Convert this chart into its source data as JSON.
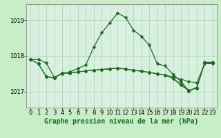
{
  "title": "Graphe pression niveau de la mer (hPa)",
  "background_color": "#c8eec8",
  "plot_bg_color": "#d8f0e0",
  "grid_color": "#a0c8a0",
  "line_color": "#1a6b1a",
  "ylim": [
    1016.55,
    1019.45
  ],
  "yticks": [
    1017,
    1018,
    1019
  ],
  "xlim": [
    -0.5,
    23.5
  ],
  "xticks": [
    0,
    1,
    2,
    3,
    4,
    5,
    6,
    7,
    8,
    9,
    10,
    11,
    12,
    13,
    14,
    15,
    16,
    17,
    18,
    19,
    20,
    21,
    22,
    23
  ],
  "series_main": [
    1017.9,
    1017.9,
    1017.8,
    1017.4,
    1017.5,
    1017.55,
    1017.65,
    1017.75,
    1018.25,
    1018.65,
    1018.92,
    1019.2,
    1019.08,
    1018.72,
    1018.55,
    1018.3,
    1017.78,
    1017.72,
    1017.48,
    1017.28,
    1017.02,
    1017.12,
    1017.82,
    1017.82
  ],
  "series_flat1": [
    1017.9,
    1017.78,
    1017.42,
    1017.38,
    1017.52,
    1017.52,
    1017.55,
    1017.58,
    1017.6,
    1017.62,
    1017.64,
    1017.66,
    1017.63,
    1017.6,
    1017.57,
    1017.54,
    1017.5,
    1017.46,
    1017.42,
    1017.35,
    1017.28,
    1017.25,
    1017.78,
    1017.78
  ],
  "series_flat2": [
    1017.9,
    1017.78,
    1017.42,
    1017.38,
    1017.52,
    1017.52,
    1017.55,
    1017.58,
    1017.6,
    1017.62,
    1017.64,
    1017.66,
    1017.63,
    1017.6,
    1017.57,
    1017.54,
    1017.5,
    1017.46,
    1017.38,
    1017.2,
    1017.04,
    1017.1,
    1017.8,
    1017.8
  ],
  "series_flat3": [
    1017.9,
    1017.78,
    1017.42,
    1017.38,
    1017.52,
    1017.52,
    1017.55,
    1017.58,
    1017.6,
    1017.62,
    1017.64,
    1017.66,
    1017.63,
    1017.6,
    1017.57,
    1017.54,
    1017.5,
    1017.46,
    1017.36,
    1017.18,
    1017.02,
    1017.1,
    1017.8,
    1017.8
  ],
  "xlabel_fontsize": 7,
  "tick_fontsize": 6,
  "marker": "D",
  "marker_size": 2.5
}
